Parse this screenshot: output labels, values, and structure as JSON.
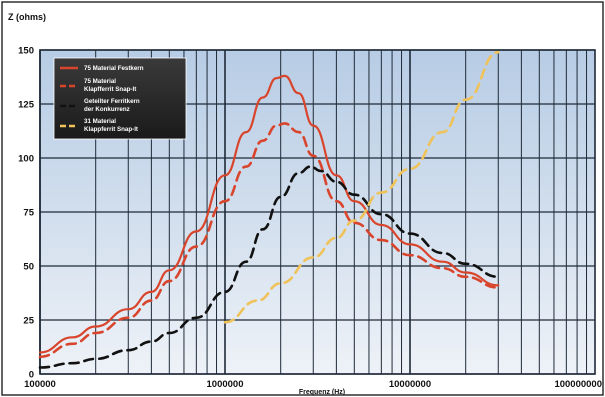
{
  "chart_data": {
    "type": "line",
    "title": "",
    "ylabel": "Z (ohms)",
    "xlabel": "Frequenz (Hz)",
    "xscale": "log",
    "xlim": [
      100000,
      100000000
    ],
    "ylim": [
      0,
      150
    ],
    "yticks": [
      0,
      25,
      50,
      75,
      100,
      125,
      150
    ],
    "xtick_labels": [
      "100000",
      "1000000",
      "10000000",
      "100000000"
    ],
    "grid": true,
    "legend_position": "top-left",
    "series": [
      {
        "name": "75 Material Festkern",
        "color": "#d9452c",
        "style": "solid",
        "x": [
          100000,
          150000,
          200000,
          300000,
          400000,
          500000,
          700000,
          1000000,
          1300000,
          1600000,
          1900000,
          2100000,
          2500000,
          3000000,
          4000000,
          5000000,
          7000000,
          10000000,
          15000000,
          20000000,
          30000000
        ],
        "y": [
          10,
          17,
          22,
          30,
          38,
          48,
          66,
          92,
          112,
          128,
          137,
          138,
          130,
          115,
          92,
          80,
          69,
          60,
          52,
          47,
          41
        ]
      },
      {
        "name": "75 Material Klapfferrit Snap-It",
        "color": "#d9452c",
        "style": "dash",
        "x": [
          100000,
          150000,
          200000,
          300000,
          400000,
          500000,
          700000,
          1000000,
          1300000,
          1600000,
          1900000,
          2100000,
          2500000,
          3000000,
          4000000,
          5000000,
          7000000,
          10000000,
          15000000,
          20000000,
          30000000
        ],
        "y": [
          8,
          14,
          19,
          26,
          34,
          43,
          59,
          80,
          96,
          108,
          115,
          116,
          112,
          101,
          80,
          70,
          62,
          55,
          49,
          45,
          40
        ]
      },
      {
        "name": "Geteilter Ferritkern der Konkurrenz",
        "color": "#111111",
        "style": "dash",
        "x": [
          100000,
          150000,
          200000,
          300000,
          400000,
          500000,
          700000,
          1000000,
          1300000,
          1600000,
          2000000,
          2500000,
          2900000,
          3300000,
          4000000,
          5000000,
          7000000,
          10000000,
          15000000,
          20000000,
          30000000
        ],
        "y": [
          3,
          5,
          7,
          11,
          15,
          19,
          26,
          38,
          52,
          67,
          82,
          93,
          96,
          94,
          89,
          83,
          74,
          65,
          56,
          51,
          45
        ]
      },
      {
        "name": "31 Material Klappferrit Snap-It",
        "color": "#f0c25a",
        "style": "dash",
        "x": [
          1000000,
          1500000,
          2000000,
          3000000,
          4000000,
          5000000,
          7000000,
          10000000,
          15000000,
          20000000,
          30000000
        ],
        "y": [
          24,
          34,
          42,
          54,
          63,
          71,
          84,
          95,
          112,
          127,
          149
        ]
      }
    ]
  }
}
